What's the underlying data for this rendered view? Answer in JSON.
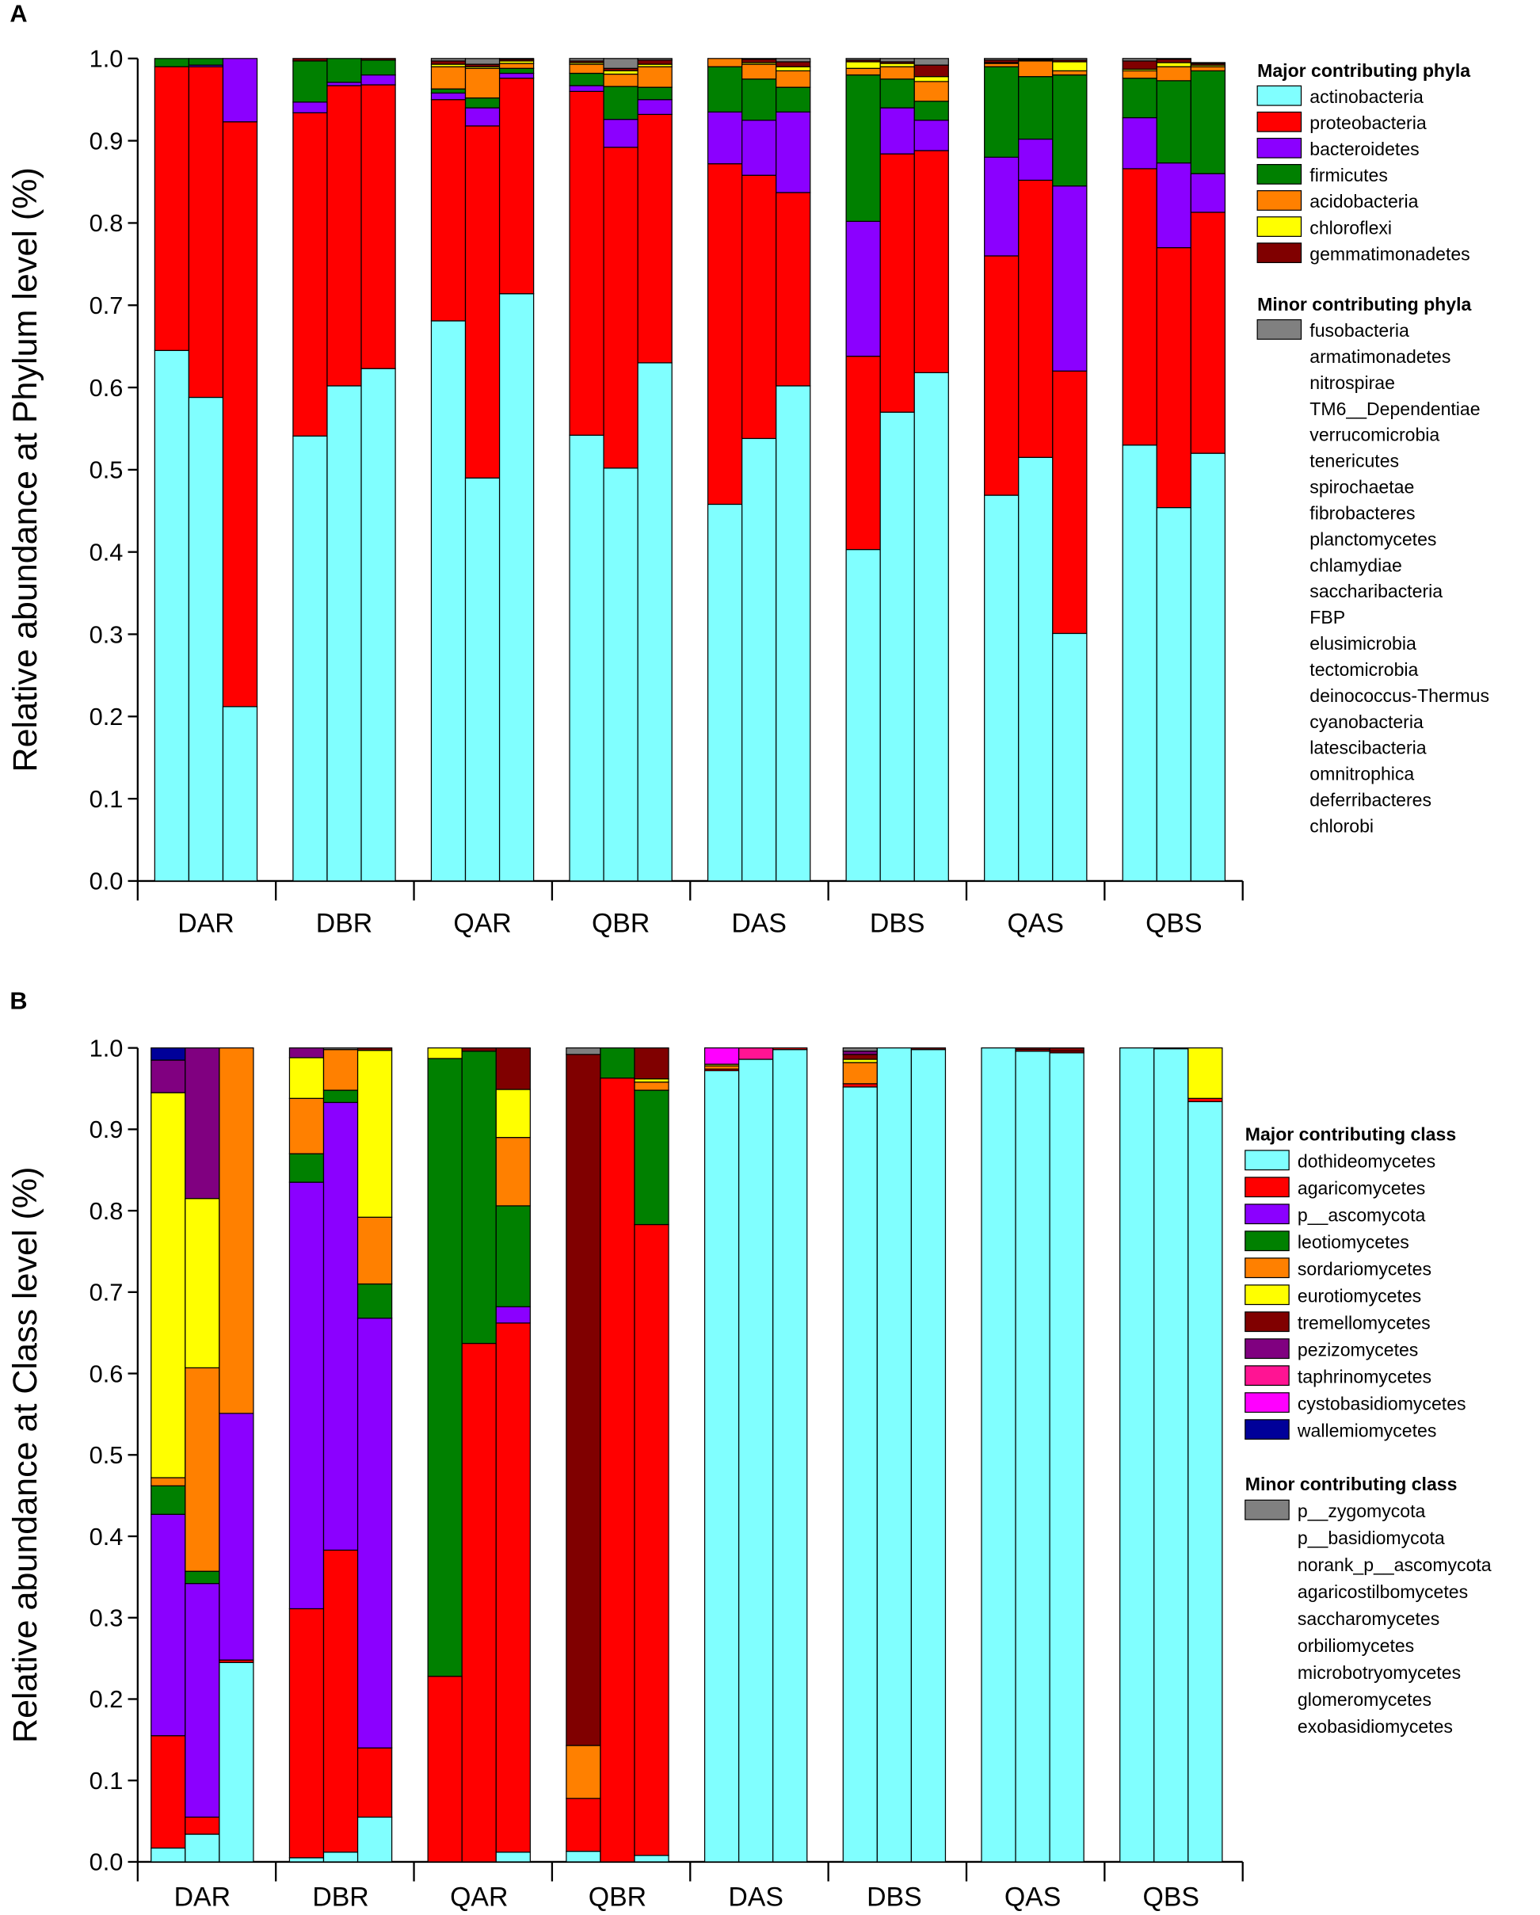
{
  "chart_data": [
    {
      "type": "bar",
      "stacked": true,
      "panel": "A",
      "ylabel": "Relative abundance at Phylum level (%)",
      "categories": [
        null,
        "DAR",
        null,
        null,
        "DBR",
        null,
        null,
        "QAR",
        null,
        null,
        "QBR",
        null,
        null,
        "DAS",
        null,
        null,
        "DBS",
        null,
        null,
        "QAS",
        null,
        null,
        "QBS",
        null
      ],
      "ylim": [
        0,
        1
      ],
      "yticks": [
        {
          "value": 0,
          "label": "0.0"
        },
        0.1,
        0.2,
        0.3,
        0.4,
        0.5,
        0.6,
        0.7,
        0.8,
        0.9,
        {
          "value": 1,
          "label": "1.0"
        }
      ],
      "legend_major_title": "Major contributing phyla",
      "legend_minor_title": "Minor contributing phyla",
      "series": [
        {
          "name": "actinobacteria",
          "color": "#80ffff",
          "values": [
            0.645,
            0.588,
            0.212,
            0.541,
            0.602,
            0.623,
            0.681,
            0.49,
            0.714,
            0.542,
            0.502,
            0.63,
            0.458,
            0.538,
            0.602,
            0.403,
            0.57,
            0.618,
            0.469,
            0.515,
            0.301,
            0.53,
            0.454,
            0.52
          ]
        },
        {
          "name": "proteobacteria",
          "color": "#ff0000",
          "values": [
            0.345,
            0.402,
            0.711,
            0.393,
            0.365,
            0.345,
            0.269,
            0.428,
            0.262,
            0.418,
            0.39,
            0.302,
            0.414,
            0.32,
            0.235,
            0.235,
            0.314,
            0.27,
            0.291,
            0.337,
            0.319,
            0.336,
            0.316,
            0.293
          ]
        },
        {
          "name": "bacteroidetes",
          "color": "#8b00ff",
          "values": [
            0,
            0.002,
            0.077,
            0.013,
            0.004,
            0.012,
            0.008,
            0.022,
            0.006,
            0.007,
            0.034,
            0.018,
            0.063,
            0.067,
            0.098,
            0.164,
            0.056,
            0.037,
            0.12,
            0.05,
            0.225,
            0.062,
            0.103,
            0.047
          ]
        },
        {
          "name": "firmicutes",
          "color": "#008000",
          "values": [
            0.01,
            0.008,
            0,
            0.05,
            0.029,
            0.018,
            0.005,
            0.012,
            0.006,
            0.015,
            0.04,
            0.015,
            0.055,
            0.05,
            0.03,
            0.178,
            0.035,
            0.023,
            0.11,
            0.076,
            0.135,
            0.048,
            0.1,
            0.125
          ]
        },
        {
          "name": "acidobacteria",
          "color": "#ff8000",
          "values": [
            0,
            0,
            0,
            0,
            0,
            0,
            0.027,
            0.036,
            0.006,
            0.011,
            0.015,
            0.025,
            0.01,
            0.018,
            0.02,
            0.008,
            0.015,
            0.024,
            0.004,
            0.019,
            0.005,
            0.009,
            0.017,
            0.005
          ]
        },
        {
          "name": "chloroflexi",
          "color": "#ffff00",
          "values": [
            0,
            0,
            0,
            0,
            0,
            0,
            0.003,
            0.002,
            0.003,
            0.002,
            0.004,
            0.003,
            0,
            0.002,
            0.005,
            0.008,
            0.004,
            0.006,
            0.001,
            0.001,
            0.011,
            0.002,
            0.005,
            0.002
          ]
        },
        {
          "name": "gemmatimonadetes",
          "color": "#800000",
          "values": [
            0,
            0,
            0,
            0.003,
            0,
            0.002,
            0.004,
            0.003,
            0.002,
            0.002,
            0.003,
            0.005,
            0,
            0.004,
            0.006,
            0.002,
            0.002,
            0.014,
            0.003,
            0.001,
            0.002,
            0.01,
            0.004,
            0.002
          ]
        },
        {
          "name": "fusobacteria",
          "color": "#808080",
          "minor": true,
          "values": [
            0,
            0,
            0,
            0,
            0,
            0,
            0.003,
            0.007,
            0.001,
            0.003,
            0.012,
            0.002,
            0,
            0.001,
            0.004,
            0.002,
            0.004,
            0.008,
            0.002,
            0.001,
            0.002,
            0.003,
            0.001,
            0.001
          ]
        }
      ],
      "minor_names": [
        "armatimonadetes",
        "nitrospirae",
        "TM6__Dependentiae",
        "verrucomicrobia",
        "tenericutes",
        "spirochaetae",
        "fibrobacteres",
        "planctomycetes",
        "chlamydiae",
        "saccharibacteria",
        "FBP",
        "elusimicrobia",
        "tectomicrobia",
        "deinococcus-Thermus",
        "cyanobacteria",
        "latescibacteria",
        "omnitrophica",
        "deferribacteres",
        "chlorobi"
      ]
    },
    {
      "type": "bar",
      "stacked": true,
      "panel": "B",
      "ylabel": "Relative abundance at Class level (%)",
      "categories": [
        null,
        "DAR",
        null,
        null,
        "DBR",
        null,
        null,
        "QAR",
        null,
        null,
        "QBR",
        null,
        null,
        "DAS",
        null,
        null,
        "DBS",
        null,
        null,
        "QAS",
        null,
        null,
        "QBS",
        null
      ],
      "ylim": [
        0,
        1
      ],
      "yticks": [
        {
          "value": 0,
          "label": "0.0"
        },
        0.1,
        0.2,
        0.3,
        0.4,
        0.5,
        0.6,
        0.7,
        0.8,
        0.9,
        {
          "value": 1,
          "label": "1.0"
        }
      ],
      "legend_major_title": "Major contributing class",
      "legend_minor_title": "Minor contributing class",
      "series": [
        {
          "name": "dothideomycetes",
          "color": "#80ffff",
          "values": [
            0.017,
            0.034,
            0.245,
            0.005,
            0.012,
            0.055,
            0,
            0,
            0.012,
            0.013,
            0,
            0.008,
            0.972,
            0.986,
            0.998,
            0.952,
            1.0,
            0.998,
            1.0,
            0.996,
            0.994,
            1.0,
            0.999,
            0.934
          ]
        },
        {
          "name": "agaricomycetes",
          "color": "#ff0000",
          "values": [
            0.138,
            0.021,
            0.003,
            0.306,
            0.371,
            0.085,
            0.228,
            0.637,
            0.65,
            0.065,
            0.963,
            0.775,
            0.002,
            0,
            0.002,
            0.004,
            0,
            0,
            0,
            0.002,
            0.002,
            0,
            0.001,
            0.004
          ]
        },
        {
          "name": "p__ascomycota",
          "color": "#8b00ff",
          "values": [
            0.272,
            0.287,
            0.303,
            0.524,
            0.55,
            0.528,
            0,
            0,
            0.02,
            0,
            0,
            0,
            0,
            0,
            0,
            0,
            0,
            0,
            0,
            0,
            0,
            0,
            0,
            0
          ]
        },
        {
          "name": "leotiomycetes",
          "color": "#008000",
          "values": [
            0.035,
            0.015,
            0,
            0.035,
            0.015,
            0.042,
            0.759,
            0.359,
            0.124,
            0,
            0.037,
            0.165,
            0,
            0,
            0,
            0,
            0,
            0,
            0,
            0,
            0,
            0,
            0,
            0
          ]
        },
        {
          "name": "sordariomycetes",
          "color": "#ff8000",
          "values": [
            0.01,
            0.25,
            0.449,
            0.068,
            0.05,
            0.082,
            0,
            0,
            0.084,
            0.065,
            0,
            0.01,
            0.004,
            0,
            0,
            0.026,
            0,
            0,
            0,
            0,
            0,
            0,
            0,
            0
          ]
        },
        {
          "name": "eurotiomycetes",
          "color": "#ffff00",
          "values": [
            0.473,
            0.208,
            0,
            0.05,
            0,
            0.205,
            0.013,
            0,
            0.059,
            0,
            0,
            0.004,
            0.002,
            0,
            0,
            0.004,
            0,
            0,
            0,
            0,
            0,
            0,
            0,
            0.062
          ]
        },
        {
          "name": "tremellomycetes",
          "color": "#800000",
          "values": [
            0,
            0,
            0,
            0,
            0,
            0.003,
            0,
            0.004,
            0.051,
            0.849,
            0,
            0.038,
            0,
            0,
            0,
            0.006,
            0,
            0.002,
            0,
            0.002,
            0.004,
            0,
            0,
            0
          ]
        },
        {
          "name": "pezizomycetes",
          "color": "#800080",
          "values": [
            0.04,
            0.185,
            0,
            0.012,
            0,
            0,
            0,
            0,
            0,
            0,
            0,
            0,
            0,
            0,
            0,
            0.004,
            0,
            0,
            0,
            0,
            0,
            0,
            0,
            0
          ]
        },
        {
          "name": "taphrinomycetes",
          "color": "#ff1493",
          "values": [
            0,
            0,
            0,
            0,
            0,
            0,
            0,
            0,
            0,
            0,
            0,
            0,
            0,
            0.014,
            0,
            0,
            0,
            0,
            0,
            0,
            0,
            0,
            0,
            0
          ]
        },
        {
          "name": "cystobasidiomycetes",
          "color": "#ff00ff",
          "values": [
            0,
            0,
            0,
            0,
            0,
            0,
            0,
            0,
            0,
            0,
            0,
            0,
            0.02,
            0,
            0,
            0,
            0,
            0,
            0,
            0,
            0,
            0,
            0,
            0
          ]
        },
        {
          "name": "wallemiomycetes",
          "color": "#000099",
          "values": [
            0.015,
            0,
            0,
            0,
            0,
            0,
            0,
            0,
            0,
            0,
            0,
            0,
            0,
            0,
            0,
            0,
            0,
            0,
            0,
            0,
            0,
            0,
            0,
            0
          ]
        },
        {
          "name": "p__zygomycota",
          "color": "#808080",
          "minor": true,
          "values": [
            0,
            0,
            0,
            0,
            0.002,
            0,
            0,
            0,
            0,
            0.008,
            0,
            0,
            0,
            0,
            0,
            0.004,
            0,
            0,
            0,
            0,
            0,
            0,
            0,
            0
          ]
        }
      ],
      "minor_names": [
        "p__basidiomycota",
        "norank_p__ascomycota",
        "agaricostilbomycetes",
        "saccharomycetes",
        "orbiliomycetes",
        "microbotryomycetes",
        "glomeromycetes",
        "exobasidiomycetes"
      ]
    }
  ]
}
